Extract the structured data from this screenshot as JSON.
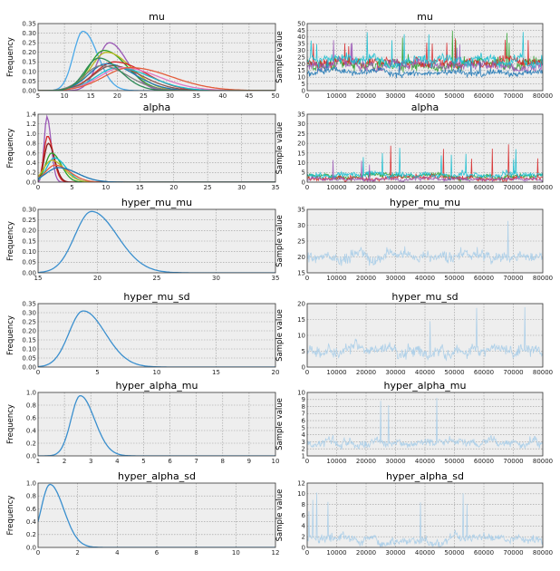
{
  "chart_data": [
    {
      "type": "line",
      "title": "mu",
      "xlabel": "",
      "ylabel": "Frequency",
      "xlim": [
        5,
        50
      ],
      "ylim": [
        0,
        0.35
      ],
      "xticks": [
        "5",
        "10",
        "15",
        "20",
        "25",
        "30",
        "35",
        "40",
        "45",
        "50"
      ],
      "yticks": [
        "0.00",
        "0.05",
        "0.10",
        "0.15",
        "0.20",
        "0.25",
        "0.30",
        "0.35"
      ],
      "grid": true,
      "series": [
        {
          "color": "#4aa8e8",
          "peak_x": 13.5,
          "peak_y": 0.31,
          "width": 1.8
        },
        {
          "color": "#9b59b6",
          "peak_x": 18.5,
          "peak_y": 0.25,
          "width": 2.2
        },
        {
          "color": "#2ca02c",
          "peak_x": 17.5,
          "peak_y": 0.21,
          "width": 2.8
        },
        {
          "color": "#b8b820",
          "peak_x": 18.0,
          "peak_y": 0.2,
          "width": 3.0
        },
        {
          "color": "#d62728",
          "peak_x": 19.5,
          "peak_y": 0.15,
          "width": 3.8
        },
        {
          "color": "#1f77b4",
          "peak_x": 18.0,
          "peak_y": 0.14,
          "width": 3.4
        },
        {
          "color": "#8c564b",
          "peak_x": 19.0,
          "peak_y": 0.13,
          "width": 3.6
        },
        {
          "color": "#17becf",
          "peak_x": 20.0,
          "peak_y": 0.12,
          "width": 4.0
        },
        {
          "color": "#e377c2",
          "peak_x": 21.0,
          "peak_y": 0.12,
          "width": 4.4
        },
        {
          "color": "#e45d3c",
          "peak_x": 22.5,
          "peak_y": 0.12,
          "width": 5.0
        },
        {
          "color": "#7f7f7f",
          "peak_x": 17.0,
          "peak_y": 0.13,
          "width": 3.2
        },
        {
          "color": "#2e8b57",
          "peak_x": 16.5,
          "peak_y": 0.17,
          "width": 2.6
        }
      ]
    },
    {
      "type": "line",
      "title": "mu",
      "xlabel": "",
      "ylabel": "Sample value",
      "xlim": [
        0,
        80000
      ],
      "ylim": [
        0,
        50
      ],
      "xticks": [
        "0",
        "10000",
        "20000",
        "30000",
        "40000",
        "50000",
        "60000",
        "70000",
        "80000"
      ],
      "yticks": [
        "0",
        "5",
        "10",
        "15",
        "20",
        "25",
        "30",
        "35",
        "40",
        "45",
        "50"
      ],
      "grid": true,
      "series": [
        {
          "color": "#2ca02c",
          "mean": 20,
          "spread": 7,
          "spike": 45
        },
        {
          "color": "#d62728",
          "mean": 21,
          "spread": 6,
          "spike": 42
        },
        {
          "color": "#9b59b6",
          "mean": 19,
          "spread": 6,
          "spike": 40
        },
        {
          "color": "#17becf",
          "mean": 22,
          "spread": 6,
          "spike": 44
        },
        {
          "color": "#1f77b4",
          "mean": 13,
          "spread": 4,
          "spike": 25
        }
      ]
    },
    {
      "type": "line",
      "title": "alpha",
      "xlabel": "",
      "ylabel": "Frequency",
      "xlim": [
        0,
        35
      ],
      "ylim": [
        0,
        1.4
      ],
      "xticks": [
        "0",
        "5",
        "10",
        "15",
        "20",
        "25",
        "30",
        "35"
      ],
      "yticks": [
        "0.0",
        "0.2",
        "0.4",
        "0.6",
        "0.8",
        "1.0",
        "1.2",
        "1.4"
      ],
      "grid": true,
      "series": [
        {
          "color": "#9b59b6",
          "peak_x": 1.3,
          "peak_y": 1.35,
          "width": 0.4
        },
        {
          "color": "#d62728",
          "peak_x": 1.4,
          "peak_y": 0.95,
          "width": 0.55
        },
        {
          "color": "#8b1a1a",
          "peak_x": 1.5,
          "peak_y": 0.8,
          "width": 0.6
        },
        {
          "color": "#2ca02c",
          "peak_x": 2.0,
          "peak_y": 0.6,
          "width": 0.9
        },
        {
          "color": "#17becf",
          "peak_x": 2.4,
          "peak_y": 0.5,
          "width": 1.1
        },
        {
          "color": "#b8b820",
          "peak_x": 2.0,
          "peak_y": 0.45,
          "width": 1.2
        },
        {
          "color": "#e45d3c",
          "peak_x": 2.5,
          "peak_y": 0.35,
          "width": 1.4
        },
        {
          "color": "#1f77b4",
          "peak_x": 3.0,
          "peak_y": 0.3,
          "width": 1.8
        }
      ]
    },
    {
      "type": "line",
      "title": "alpha",
      "xlabel": "",
      "ylabel": "Sample value",
      "xlim": [
        0,
        80000
      ],
      "ylim": [
        0,
        35
      ],
      "xticks": [
        "0",
        "10000",
        "20000",
        "30000",
        "40000",
        "50000",
        "60000",
        "70000",
        "80000"
      ],
      "yticks": [
        "0",
        "5",
        "10",
        "15",
        "20",
        "25",
        "30",
        "35"
      ],
      "grid": true,
      "series": [
        {
          "color": "#2ca02c",
          "mean": 3,
          "spread": 2,
          "spike": 30
        },
        {
          "color": "#d62728",
          "mean": 2,
          "spread": 2,
          "spike": 20
        },
        {
          "color": "#17becf",
          "mean": 4,
          "spread": 2.5,
          "spike": 18
        },
        {
          "color": "#9b59b6",
          "mean": 1.5,
          "spread": 1.5,
          "spike": 12
        }
      ]
    },
    {
      "type": "line",
      "title": "hyper_mu_mu",
      "xlabel": "",
      "ylabel": "Frequency",
      "xlim": [
        15,
        35
      ],
      "ylim": [
        0,
        0.3
      ],
      "xticks": [
        "15",
        "20",
        "25",
        "30",
        "35"
      ],
      "yticks": [
        "0.00",
        "0.05",
        "0.10",
        "0.15",
        "0.20",
        "0.25",
        "0.30"
      ],
      "grid": true,
      "series": [
        {
          "color": "#3a8fce",
          "peak_x": 19.5,
          "peak_y": 0.29,
          "width": 1.4
        }
      ]
    },
    {
      "type": "line",
      "title": "hyper_mu_mu",
      "xlabel": "",
      "ylabel": "Sample value",
      "xlim": [
        0,
        80000
      ],
      "ylim": [
        15,
        35
      ],
      "xticks": [
        "0",
        "10000",
        "20000",
        "30000",
        "40000",
        "50000",
        "60000",
        "70000",
        "80000"
      ],
      "yticks": [
        "15",
        "20",
        "25",
        "30",
        "35"
      ],
      "grid": true,
      "series": [
        {
          "color": "#a8cde8",
          "mean": 20,
          "spread": 3,
          "spike": 34
        }
      ]
    },
    {
      "type": "line",
      "title": "hyper_mu_sd",
      "xlabel": "",
      "ylabel": "Frequency",
      "xlim": [
        0,
        20
      ],
      "ylim": [
        0,
        0.35
      ],
      "xticks": [
        "0",
        "5",
        "10",
        "15",
        "20"
      ],
      "yticks": [
        "0.00",
        "0.05",
        "0.10",
        "0.15",
        "0.20",
        "0.25",
        "0.30",
        "0.35"
      ],
      "grid": true,
      "series": [
        {
          "color": "#3a8fce",
          "peak_x": 3.8,
          "peak_y": 0.31,
          "width": 1.2
        }
      ]
    },
    {
      "type": "line",
      "title": "hyper_mu_sd",
      "xlabel": "",
      "ylabel": "Sample value",
      "xlim": [
        0,
        80000
      ],
      "ylim": [
        0,
        20
      ],
      "xticks": [
        "0",
        "10000",
        "20000",
        "30000",
        "40000",
        "50000",
        "60000",
        "70000",
        "80000"
      ],
      "yticks": [
        "0",
        "5",
        "10",
        "15",
        "20"
      ],
      "grid": true,
      "series": [
        {
          "color": "#a8cde8",
          "mean": 5,
          "spread": 3,
          "spike": 19
        }
      ]
    },
    {
      "type": "line",
      "title": "hyper_alpha_mu",
      "xlabel": "",
      "ylabel": "Frequency",
      "xlim": [
        1,
        10
      ],
      "ylim": [
        0,
        1.0
      ],
      "xticks": [
        "1",
        "2",
        "3",
        "4",
        "5",
        "6",
        "7",
        "8",
        "9",
        "10"
      ],
      "yticks": [
        "0.0",
        "0.2",
        "0.4",
        "0.6",
        "0.8",
        "1.0"
      ],
      "grid": true,
      "series": [
        {
          "color": "#3a8fce",
          "peak_x": 2.6,
          "peak_y": 0.95,
          "width": 0.35
        }
      ]
    },
    {
      "type": "line",
      "title": "hyper_alpha_mu",
      "xlabel": "",
      "ylabel": "Sample value",
      "xlim": [
        0,
        80000
      ],
      "ylim": [
        1,
        10
      ],
      "xticks": [
        "0",
        "10000",
        "20000",
        "30000",
        "40000",
        "50000",
        "60000",
        "70000",
        "80000"
      ],
      "yticks": [
        "1",
        "2",
        "3",
        "4",
        "5",
        "6",
        "7",
        "8",
        "9",
        "10"
      ],
      "grid": true,
      "series": [
        {
          "color": "#a8cde8",
          "mean": 2.8,
          "spread": 1,
          "spike": 9.8
        }
      ]
    },
    {
      "type": "line",
      "title": "hyper_alpha_sd",
      "xlabel": "",
      "ylabel": "Frequency",
      "xlim": [
        0,
        12
      ],
      "ylim": [
        0,
        1.0
      ],
      "xticks": [
        "0",
        "2",
        "4",
        "6",
        "8",
        "10",
        "12"
      ],
      "yticks": [
        "0.0",
        "0.2",
        "0.4",
        "0.6",
        "0.8",
        "1.0"
      ],
      "grid": true,
      "series": [
        {
          "color": "#3a8fce",
          "peak_x": 0.6,
          "peak_y": 0.98,
          "width": 0.45
        }
      ]
    },
    {
      "type": "line",
      "title": "hyper_alpha_sd",
      "xlabel": "",
      "ylabel": "Sample value",
      "xlim": [
        0,
        80000
      ],
      "ylim": [
        0,
        12
      ],
      "xticks": [
        "0",
        "10000",
        "20000",
        "30000",
        "40000",
        "50000",
        "60000",
        "70000",
        "80000"
      ],
      "yticks": [
        "0",
        "2",
        "4",
        "6",
        "8",
        "10",
        "12"
      ],
      "grid": true,
      "series": [
        {
          "color": "#a8cde8",
          "mean": 1.6,
          "spread": 1.4,
          "spike": 10.5
        }
      ]
    }
  ]
}
